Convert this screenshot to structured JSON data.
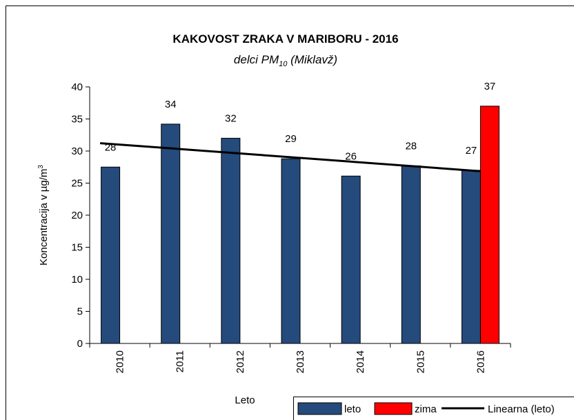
{
  "chart_data": {
    "type": "bar",
    "title": "KAKOVOST ZRAKA V MARIBORU - 2016",
    "subtitle": [
      "delci PM",
      "10",
      " (Miklavž)"
    ],
    "x_label": "Leto",
    "y_label": [
      "Koncentracija v µg/m",
      "3"
    ],
    "categories": [
      "2010",
      "2011",
      "2012",
      "2013",
      "2014",
      "2015",
      "2016"
    ],
    "series": [
      {
        "name": "leto",
        "color": "#254a7c",
        "values": [
          27.5,
          34.2,
          32.0,
          28.8,
          26.1,
          27.7,
          27.0
        ],
        "value_labels": [
          "28",
          "34",
          "32",
          "29",
          "26",
          "28",
          "27"
        ]
      },
      {
        "name": "zima",
        "color": "#ff0000",
        "values": [
          null,
          null,
          null,
          null,
          null,
          null,
          37.0
        ],
        "value_labels": [
          null,
          null,
          null,
          null,
          null,
          null,
          "37"
        ]
      }
    ],
    "trendline": {
      "name": "Linearna (leto)",
      "color": "#000000",
      "of_series": 0
    },
    "ylim": [
      0,
      40
    ],
    "yticks": [
      0,
      5,
      10,
      15,
      20,
      25,
      30,
      35,
      40
    ],
    "legend": "bottom-right"
  }
}
